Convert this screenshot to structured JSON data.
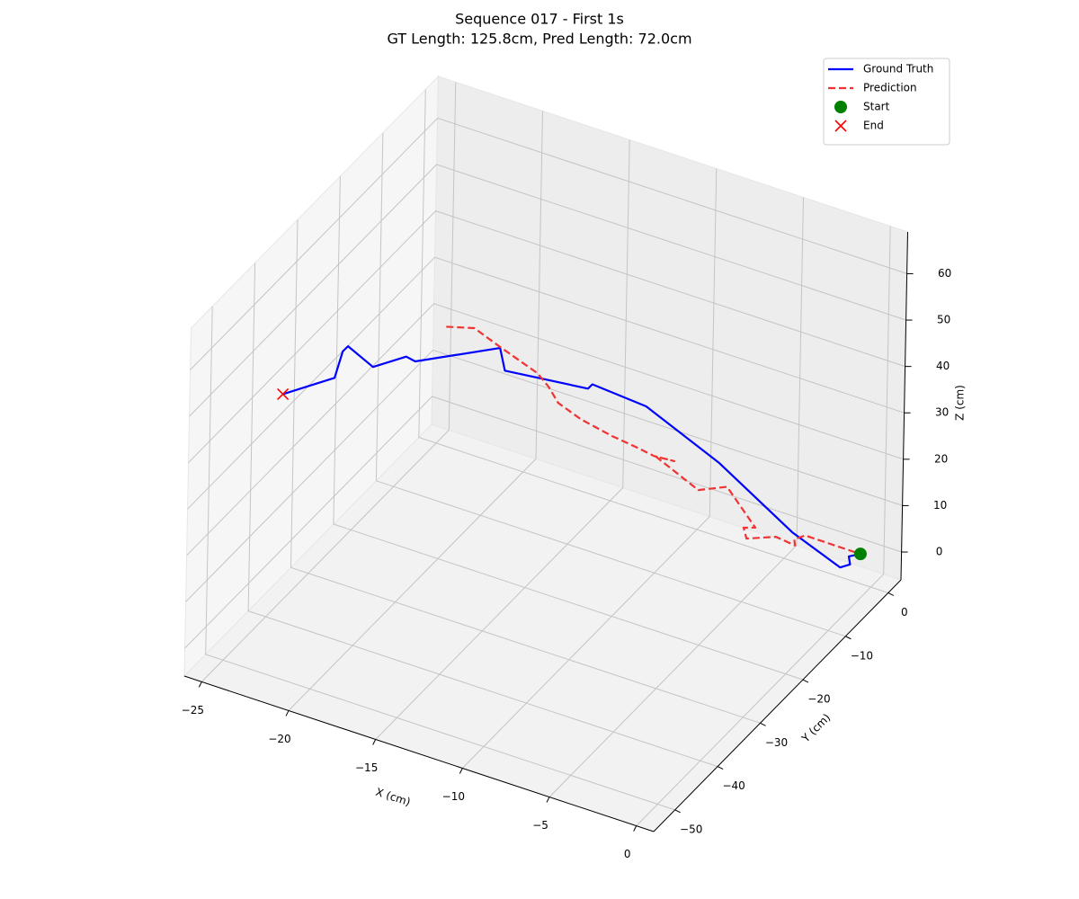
{
  "chart_data": {
    "type": "line3d",
    "title": "Sequence 017 - First 1s",
    "subtitle": "GT Length: 125.8cm, Pred Length: 72.0cm",
    "xlabel": "X (cm)",
    "ylabel": "Y (cm)",
    "zlabel": "Z (cm)",
    "xlim": [
      -26,
      1
    ],
    "ylim": [
      -55,
      3
    ],
    "zlim": [
      -6,
      69
    ],
    "xticks": [
      {
        "value": -25,
        "label": "−25"
      },
      {
        "value": -20,
        "label": "−20"
      },
      {
        "value": -15,
        "label": "−15"
      },
      {
        "value": -10,
        "label": "−10"
      },
      {
        "value": -5,
        "label": "−5"
      },
      0
    ],
    "yticks": [
      {
        "value": -50,
        "label": "−50"
      },
      {
        "value": -40,
        "label": "−40"
      },
      {
        "value": -30,
        "label": "−30"
      },
      {
        "value": -20,
        "label": "−20"
      },
      {
        "value": -10,
        "label": "−10"
      },
      0
    ],
    "zticks": [
      0,
      10,
      20,
      30,
      40,
      50,
      60
    ],
    "grid": true,
    "legend": "upper right",
    "series": [
      {
        "name": "Ground Truth",
        "color": "#0000ff",
        "style": "solid",
        "x": [
          -0.7,
          -1.1,
          -0.9,
          -1.2,
          -4.0,
          -8.8,
          -12.8,
          -15.3,
          -15.5,
          -19.1,
          -19.3,
          -22.8,
          -23.2,
          -24.4,
          -25.2,
          -25.4,
          -25.6,
          -25.6
        ],
        "y": [
          0.3,
          -0.8,
          -1.3,
          -2.4,
          -2.3,
          -0.1,
          -1.0,
          -3.5,
          -3.7,
          -8.6,
          -9.0,
          -14.6,
          -15.1,
          -18.0,
          -20.7,
          -21.1,
          -22.1,
          -34.4
        ],
        "z": [
          0,
          0,
          -1,
          -1,
          3,
          10,
          18,
          22,
          21,
          25,
          30,
          28,
          29,
          28,
          34,
          33,
          28,
          36
        ]
      },
      {
        "name": "Prediction",
        "color": "#f03232",
        "style": "dashed",
        "x": [
          -1.0,
          -3.5,
          -4.0,
          -3.9,
          -4.9,
          -6.3,
          -6.5,
          -6.0,
          -7.8,
          -9.3,
          -11.4,
          -10.8,
          -11.5,
          -12.3,
          -13.4,
          -14.9,
          -16.0,
          -16.5,
          -17.0,
          -19.0,
          -20.1,
          -21.3
        ],
        "y": [
          0.3,
          -1.3,
          -1.8,
          -2.0,
          -2.4,
          -3.6,
          -3.5,
          -2.8,
          -2.2,
          -2.8,
          -4.3,
          -2.4,
          -4.3,
          -5.4,
          -6.5,
          -7.8,
          -8.7,
          -8.9,
          -9.6,
          -10.4,
          -11.9,
          -14.2
        ],
        "z": [
          0,
          2,
          1,
          0,
          1,
          0,
          2,
          2,
          8,
          6,
          12,
          10,
          12,
          14,
          16,
          19,
          22,
          25,
          28,
          32,
          36,
          37
        ]
      },
      {
        "name": "Start",
        "color": "#008000",
        "marker": "o",
        "x": [
          -0.7
        ],
        "y": [
          0.3
        ],
        "z": [
          0
        ]
      },
      {
        "name": "End",
        "color": "#ff0000",
        "marker": "x",
        "x": [
          -25.6
        ],
        "y": [
          -34.4
        ],
        "z": [
          36
        ]
      }
    ]
  }
}
